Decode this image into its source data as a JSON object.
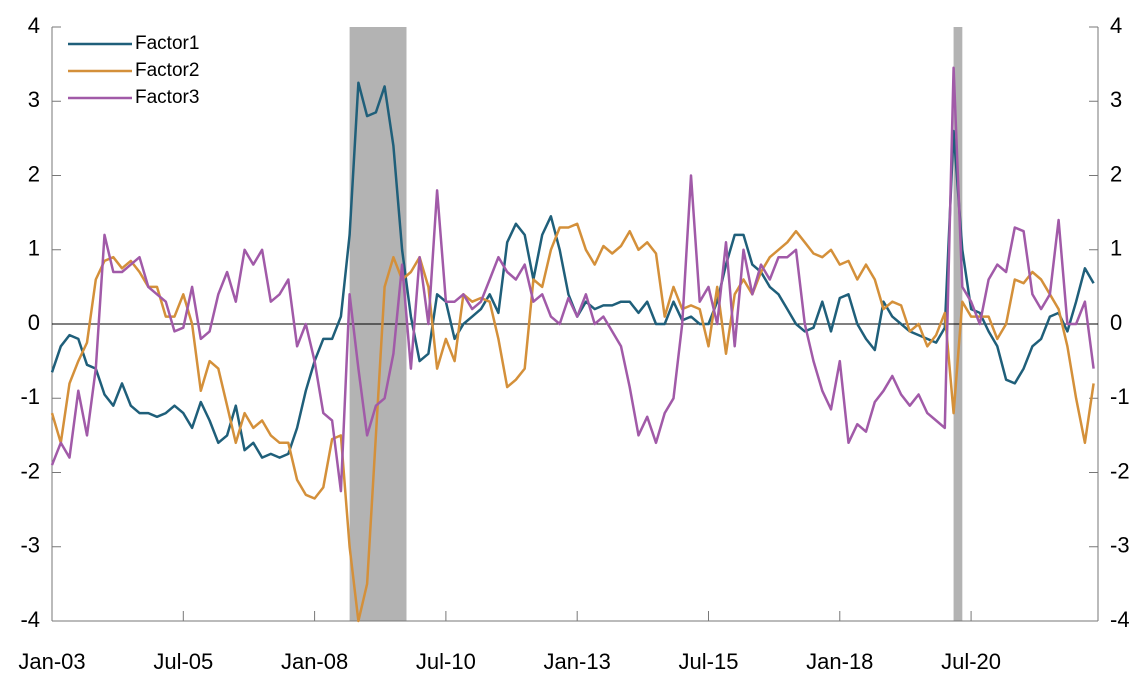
{
  "chart_data": {
    "type": "line",
    "x": [
      0,
      2,
      4,
      6,
      8,
      10,
      12,
      14,
      16,
      18,
      20,
      22,
      24,
      26,
      28,
      30,
      32,
      34,
      36,
      38,
      40,
      42,
      44,
      46,
      48,
      50,
      52,
      54,
      56,
      58,
      60,
      62,
      64,
      66,
      68,
      70,
      72,
      74,
      76,
      78,
      80,
      82,
      84,
      86,
      88,
      90,
      92,
      94,
      96,
      98,
      100,
      102,
      104,
      106,
      108,
      110,
      112,
      114,
      116,
      118,
      120,
      122,
      124,
      126,
      128,
      130,
      132,
      134,
      136,
      138,
      140,
      142,
      144,
      146,
      148,
      150,
      152,
      154,
      156,
      158,
      160,
      162,
      164,
      166,
      168,
      170,
      172,
      174,
      176,
      178,
      180,
      182,
      184,
      186,
      188,
      190,
      192,
      194,
      196,
      198,
      200,
      202,
      204,
      206,
      208,
      210,
      212,
      214,
      216,
      218,
      220,
      222,
      224,
      226,
      228,
      230,
      232,
      234,
      236,
      238
    ],
    "xlim": [
      0,
      239
    ],
    "xticks": [
      {
        "value": 0,
        "label": "Jan-03"
      },
      {
        "value": 30,
        "label": "Jul-05"
      },
      {
        "value": 60,
        "label": "Jan-08"
      },
      {
        "value": 90,
        "label": "Jul-10"
      },
      {
        "value": 120,
        "label": "Jan-13"
      },
      {
        "value": 150,
        "label": "Jul-15"
      },
      {
        "value": 180,
        "label": "Jan-18"
      },
      {
        "value": 210,
        "label": "Jul-20"
      }
    ],
    "ylim": [
      -4,
      4
    ],
    "yticks": [
      -4,
      -3,
      -2,
      -1,
      0,
      1,
      2,
      3,
      4
    ],
    "shaded": [
      [
        68,
        81
      ],
      [
        206,
        208
      ]
    ],
    "shade_color": "#b3b3b3",
    "legend": "upper left",
    "series": [
      {
        "name": "Factor1",
        "color": "#1f5f7a",
        "values": [
          -0.65,
          -0.3,
          -0.15,
          -0.2,
          -0.55,
          -0.6,
          -0.95,
          -1.1,
          -0.8,
          -1.1,
          -1.2,
          -1.2,
          -1.25,
          -1.2,
          -1.1,
          -1.2,
          -1.4,
          -1.05,
          -1.3,
          -1.6,
          -1.5,
          -1.1,
          -1.7,
          -1.6,
          -1.8,
          -1.75,
          -1.8,
          -1.75,
          -1.4,
          -0.9,
          -0.5,
          -0.2,
          -0.2,
          0.1,
          1.2,
          3.25,
          2.8,
          2.85,
          3.2,
          2.4,
          1.0,
          0.1,
          -0.5,
          -0.4,
          0.4,
          0.3,
          -0.2,
          0.0,
          0.1,
          0.2,
          0.4,
          0.15,
          1.1,
          1.35,
          1.2,
          0.6,
          1.2,
          1.45,
          1.0,
          0.4,
          0.1,
          0.3,
          0.2,
          0.25,
          0.25,
          0.3,
          0.3,
          0.15,
          0.3,
          0.0,
          0.0,
          0.3,
          0.05,
          0.1,
          0.0,
          0.0,
          0.3,
          0.8,
          1.2,
          1.2,
          0.8,
          0.7,
          0.5,
          0.4,
          0.2,
          0.0,
          -0.1,
          -0.05,
          0.3,
          -0.1,
          0.35,
          0.4,
          0.0,
          -0.2,
          -0.35,
          0.3,
          0.1,
          0.0,
          -0.1,
          -0.15,
          -0.2,
          -0.25,
          -0.05,
          2.6,
          1.0,
          0.2,
          0.15,
          -0.1,
          -0.3,
          -0.75,
          -0.8,
          -0.6,
          -0.3,
          -0.2,
          0.1,
          0.15,
          -0.1,
          0.3,
          0.75,
          0.55
        ]
      },
      {
        "name": "Factor2",
        "color": "#d4903a",
        "values": [
          -1.2,
          -1.6,
          -0.8,
          -0.5,
          -0.25,
          0.6,
          0.85,
          0.9,
          0.75,
          0.85,
          0.7,
          0.5,
          0.5,
          0.1,
          0.1,
          0.4,
          0.0,
          -0.9,
          -0.5,
          -0.6,
          -1.1,
          -1.6,
          -1.2,
          -1.4,
          -1.3,
          -1.5,
          -1.6,
          -1.6,
          -2.1,
          -2.3,
          -2.35,
          -2.2,
          -1.55,
          -1.5,
          -3.0,
          -4.0,
          -3.5,
          -1.5,
          0.5,
          0.9,
          0.6,
          0.7,
          0.9,
          0.5,
          -0.6,
          -0.2,
          -0.5,
          0.4,
          0.3,
          0.35,
          0.3,
          -0.2,
          -0.85,
          -0.75,
          -0.6,
          0.6,
          0.5,
          1.0,
          1.3,
          1.3,
          1.35,
          1.0,
          0.8,
          1.05,
          0.95,
          1.05,
          1.25,
          1.0,
          1.1,
          0.95,
          0.1,
          0.5,
          0.2,
          0.25,
          0.2,
          -0.3,
          0.5,
          -0.4,
          0.4,
          0.6,
          0.4,
          0.7,
          0.9,
          1.0,
          1.1,
          1.25,
          1.1,
          0.95,
          0.9,
          1.0,
          0.8,
          0.85,
          0.6,
          0.8,
          0.6,
          0.2,
          0.3,
          0.25,
          -0.1,
          0.0,
          -0.3,
          -0.15,
          0.15,
          -1.2,
          0.3,
          0.1,
          0.1,
          0.1,
          -0.2,
          0.0,
          0.6,
          0.55,
          0.7,
          0.6,
          0.4,
          0.2,
          -0.3,
          -1.0,
          -1.6,
          -0.8
        ]
      },
      {
        "name": "Factor3",
        "color": "#a15aa8",
        "values": [
          -1.9,
          -1.6,
          -1.8,
          -0.9,
          -1.5,
          -0.6,
          1.2,
          0.7,
          0.7,
          0.8,
          0.9,
          0.5,
          0.4,
          0.3,
          -0.1,
          -0.05,
          0.5,
          -0.2,
          -0.1,
          0.4,
          0.7,
          0.3,
          1.0,
          0.8,
          1.0,
          0.3,
          0.4,
          0.6,
          -0.3,
          0.0,
          -0.5,
          -1.2,
          -1.3,
          -2.25,
          0.4,
          -0.6,
          -1.5,
          -1.1,
          -1.0,
          -0.4,
          0.8,
          -0.6,
          0.9,
          0.0,
          1.8,
          0.3,
          0.3,
          0.4,
          0.2,
          0.3,
          0.6,
          0.9,
          0.7,
          0.6,
          0.8,
          0.3,
          0.4,
          0.1,
          0.0,
          0.35,
          0.1,
          0.4,
          0.0,
          0.1,
          -0.1,
          -0.3,
          -0.85,
          -1.5,
          -1.25,
          -1.6,
          -1.2,
          -1.0,
          0.0,
          2.0,
          0.3,
          0.5,
          0.0,
          1.1,
          -0.3,
          1.0,
          0.4,
          0.8,
          0.6,
          0.9,
          0.9,
          1.0,
          0.0,
          -0.5,
          -0.9,
          -1.15,
          -0.5,
          -1.6,
          -1.35,
          -1.45,
          -1.05,
          -0.9,
          -0.7,
          -0.95,
          -1.1,
          -0.95,
          -1.2,
          -1.3,
          -1.4,
          3.45,
          0.5,
          0.3,
          0.0,
          0.6,
          0.8,
          0.7,
          1.3,
          1.25,
          0.4,
          0.2,
          0.4,
          1.4,
          0.0,
          0.0,
          0.3,
          -0.6
        ]
      }
    ]
  }
}
